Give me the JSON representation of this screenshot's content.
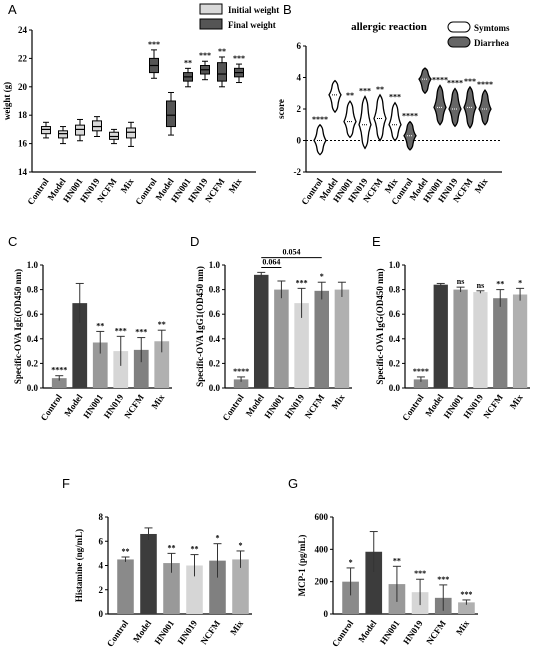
{
  "chart_data": [
    {
      "panel": "A",
      "type": "box",
      "ylabel": "weight (g)",
      "ylim": [
        14,
        24
      ],
      "yticks": [
        14,
        16,
        18,
        20,
        22,
        24
      ],
      "legend": [
        "Initial weight",
        "Final weight"
      ],
      "legend_colors": [
        "#d9d9d9",
        "#555555"
      ],
      "groups": [
        {
          "series": "Initial weight",
          "categories": [
            "Control",
            "Model",
            "HN001",
            "HN019",
            "NCFM",
            "Mix"
          ],
          "boxes": [
            {
              "min": 16.4,
              "q1": 16.7,
              "median": 17.0,
              "q3": 17.2,
              "max": 17.5
            },
            {
              "min": 16.0,
              "q1": 16.4,
              "median": 16.7,
              "q3": 16.9,
              "max": 17.2
            },
            {
              "min": 16.2,
              "q1": 16.6,
              "median": 17.0,
              "q3": 17.3,
              "max": 17.7
            },
            {
              "min": 16.5,
              "q1": 16.9,
              "median": 17.2,
              "q3": 17.6,
              "max": 17.9
            },
            {
              "min": 16.0,
              "q1": 16.3,
              "median": 16.5,
              "q3": 16.8,
              "max": 17.0
            },
            {
              "min": 15.8,
              "q1": 16.4,
              "median": 16.8,
              "q3": 17.1,
              "max": 17.5
            }
          ],
          "sig": [
            "",
            "",
            "",
            "",
            "",
            ""
          ]
        },
        {
          "series": "Final weight",
          "categories": [
            "Control",
            "Model",
            "HN001",
            "HN019",
            "NCFM",
            "Mix"
          ],
          "boxes": [
            {
              "min": 20.6,
              "q1": 21.0,
              "median": 21.5,
              "q3": 22.0,
              "max": 22.6
            },
            {
              "min": 16.6,
              "q1": 17.2,
              "median": 18.0,
              "q3": 19.0,
              "max": 19.6
            },
            {
              "min": 20.0,
              "q1": 20.4,
              "median": 20.7,
              "q3": 21.0,
              "max": 21.3
            },
            {
              "min": 20.5,
              "q1": 20.9,
              "median": 21.2,
              "q3": 21.5,
              "max": 21.8
            },
            {
              "min": 20.0,
              "q1": 20.4,
              "median": 20.9,
              "q3": 21.7,
              "max": 22.1
            },
            {
              "min": 20.3,
              "q1": 20.7,
              "median": 21.0,
              "q3": 21.3,
              "max": 21.6
            }
          ],
          "sig": [
            "***",
            "",
            "**",
            "***",
            "**",
            "***"
          ]
        }
      ]
    },
    {
      "panel": "B",
      "type": "violin",
      "title": "allergic reaction",
      "ylabel": "score",
      "ylim": [
        -2,
        6
      ],
      "yticks": [
        -2,
        0,
        2,
        4,
        6
      ],
      "legend": [
        "Symtoms",
        "Diarrhea"
      ],
      "legend_colors": [
        "#ffffff",
        "#666666"
      ],
      "groups": [
        {
          "series": "Symtoms",
          "categories": [
            "Control",
            "Model",
            "HN001",
            "HN019",
            "NCFM",
            "Mix"
          ],
          "violins": [
            {
              "min": -0.9,
              "max": 1.0,
              "median": 0.0
            },
            {
              "min": 1.8,
              "max": 3.8,
              "median": 2.9
            },
            {
              "min": 0.2,
              "max": 2.5,
              "median": 1.2
            },
            {
              "min": -0.5,
              "max": 2.8,
              "median": 1.0
            },
            {
              "min": 0.0,
              "max": 2.9,
              "median": 1.4
            },
            {
              "min": 0.0,
              "max": 2.4,
              "median": 1.0
            }
          ],
          "sig": [
            "****",
            "",
            "**",
            "***",
            "**",
            "***"
          ]
        },
        {
          "series": "Diarrhea",
          "categories": [
            "Control",
            "Model",
            "HN001",
            "HN019",
            "NCFM",
            "Mix"
          ],
          "violins": [
            {
              "min": -0.6,
              "max": 1.2,
              "median": 0.3
            },
            {
              "min": 3.0,
              "max": 4.6,
              "median": 3.9
            },
            {
              "min": 1.0,
              "max": 3.5,
              "median": 2.1
            },
            {
              "min": 0.9,
              "max": 3.3,
              "median": 2.0
            },
            {
              "min": 0.8,
              "max": 3.4,
              "median": 2.1
            },
            {
              "min": 1.0,
              "max": 3.2,
              "median": 2.0
            }
          ],
          "sig": [
            "****",
            "",
            "****",
            "****",
            "***",
            "****"
          ]
        }
      ],
      "reference_line": 0
    },
    {
      "panel": "C",
      "type": "bar",
      "ylabel": "Specific-OVA IgE(OD450 nm)",
      "ylim": [
        0,
        1.0
      ],
      "yticks": [
        0.0,
        0.2,
        0.4,
        0.6,
        0.8,
        1.0
      ],
      "categories": [
        "Control",
        "Model",
        "HN001",
        "HN019",
        "NCFM",
        "Mix"
      ],
      "values": [
        0.08,
        0.69,
        0.37,
        0.3,
        0.31,
        0.38
      ],
      "errors": [
        0.02,
        0.16,
        0.09,
        0.12,
        0.1,
        0.09
      ],
      "colors": [
        "#8a8a8a",
        "#3c3c3c",
        "#999999",
        "#d6d6d6",
        "#808080",
        "#b0b0b0"
      ],
      "sig": [
        "****",
        "",
        "**",
        "***",
        "***",
        "**"
      ]
    },
    {
      "panel": "D",
      "type": "bar",
      "ylabel": "Specific-OVA IgG1(OD450 nm)",
      "ylim": [
        0,
        1.0
      ],
      "yticks": [
        0.0,
        0.2,
        0.4,
        0.6,
        0.8,
        1.0
      ],
      "categories": [
        "Control",
        "Model",
        "HN001",
        "HN019",
        "NCFM",
        "Mix"
      ],
      "values": [
        0.07,
        0.92,
        0.8,
        0.69,
        0.79,
        0.8
      ],
      "errors": [
        0.02,
        0.02,
        0.07,
        0.12,
        0.07,
        0.06
      ],
      "colors": [
        "#8a8a8a",
        "#3c3c3c",
        "#999999",
        "#d6d6d6",
        "#808080",
        "#b0b0b0"
      ],
      "sig": [
        "****",
        "",
        "",
        "***",
        "*",
        ""
      ],
      "brackets": [
        {
          "from": 1,
          "to": 2,
          "label": "0.064",
          "level": 0.98
        },
        {
          "from": 1,
          "to": 4,
          "label": "0.054",
          "level": 1.06
        }
      ]
    },
    {
      "panel": "E",
      "type": "bar",
      "ylabel": "Specific-OVA IgG(OD450 nm)",
      "ylim": [
        0,
        1.0
      ],
      "yticks": [
        0.0,
        0.2,
        0.4,
        0.6,
        0.8,
        1.0
      ],
      "categories": [
        "Control",
        "Model",
        "HN001",
        "HN019",
        "NCFM",
        "Mix"
      ],
      "values": [
        0.07,
        0.84,
        0.8,
        0.78,
        0.73,
        0.76
      ],
      "errors": [
        0.02,
        0.01,
        0.02,
        0.01,
        0.07,
        0.05
      ],
      "colors": [
        "#8a8a8a",
        "#3c3c3c",
        "#999999",
        "#d6d6d6",
        "#808080",
        "#b0b0b0"
      ],
      "sig": [
        "****",
        "",
        "ns",
        "ns",
        "**",
        "*"
      ]
    },
    {
      "panel": "F",
      "type": "bar",
      "ylabel": "Histamine (ng/mL)",
      "ylim": [
        0,
        8
      ],
      "yticks": [
        0,
        2,
        4,
        6,
        8
      ],
      "categories": [
        "Control",
        "Model",
        "HN001",
        "HN019",
        "NCFM",
        "Mix"
      ],
      "values": [
        4.5,
        6.6,
        4.2,
        4.0,
        4.4,
        4.5
      ],
      "errors": [
        0.2,
        0.5,
        0.8,
        0.9,
        1.4,
        0.7
      ],
      "colors": [
        "#8a8a8a",
        "#3c3c3c",
        "#999999",
        "#d6d6d6",
        "#808080",
        "#b0b0b0"
      ],
      "sig": [
        "**",
        "",
        "**",
        "**",
        "*",
        "*"
      ]
    },
    {
      "panel": "G",
      "type": "bar",
      "ylabel": "MCP-1 (pg/mL)",
      "ylim": [
        0,
        600
      ],
      "yticks": [
        0,
        200,
        400,
        600
      ],
      "categories": [
        "Control",
        "Model",
        "HN001",
        "HN019",
        "NCFM",
        "Mix"
      ],
      "values": [
        200,
        385,
        185,
        135,
        100,
        72
      ],
      "errors": [
        85,
        125,
        110,
        80,
        80,
        15
      ],
      "colors": [
        "#8a8a8a",
        "#3c3c3c",
        "#999999",
        "#d6d6d6",
        "#808080",
        "#b0b0b0"
      ],
      "sig": [
        "*",
        "",
        "**",
        "***",
        "***",
        "***"
      ]
    }
  ]
}
